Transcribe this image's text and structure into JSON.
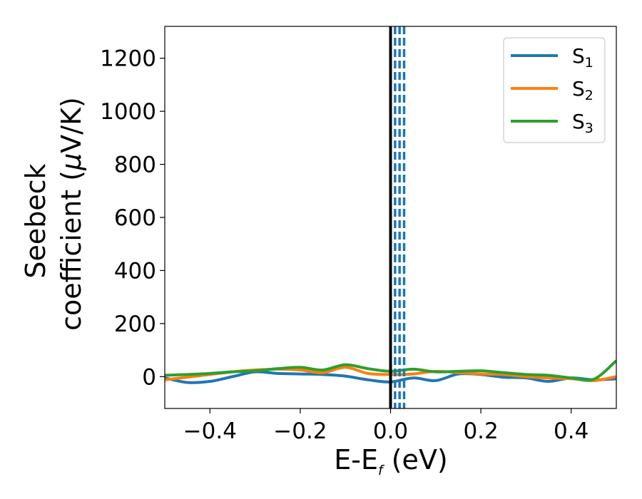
{
  "chart_data": {
    "type": "line",
    "xlabel": "E-E",
    "xlabel_subscript": "f",
    "xlabel_unit": " (eV)",
    "ylabel_line1": "Seebeck",
    "ylabel_line2_prefix": "coefficient  (",
    "ylabel_mu": "μ",
    "ylabel_line2_suffix": "V/K)",
    "xlim": [
      -0.5,
      0.5
    ],
    "ylim": [
      -120,
      1320
    ],
    "x_ticks": [
      -0.4,
      -0.2,
      0.0,
      0.2,
      0.4
    ],
    "x_tick_labels": [
      "−0.4",
      "−0.2",
      "0.0",
      "0.2",
      "0.4"
    ],
    "y_ticks": [
      0,
      200,
      400,
      600,
      800,
      1000,
      1200
    ],
    "y_tick_labels": [
      "0",
      "200",
      "400",
      "600",
      "800",
      "1000",
      "1200"
    ],
    "legend_position": "top-right",
    "vline_solid": {
      "x": 0.0,
      "color": "#000000"
    },
    "vlines_dashed": {
      "x": [
        0.01,
        0.02,
        0.03
      ],
      "color": "#1f77b4"
    },
    "x": [
      -0.5,
      -0.45,
      -0.4,
      -0.35,
      -0.3,
      -0.25,
      -0.2,
      -0.15,
      -0.1,
      -0.05,
      0.0,
      0.05,
      0.1,
      0.15,
      0.2,
      0.25,
      0.3,
      0.35,
      0.4,
      0.45,
      0.5
    ],
    "series": [
      {
        "name": "S",
        "sub": "1",
        "color": "#1f77b4",
        "values": [
          -5,
          -22,
          -18,
          0,
          18,
          12,
          10,
          8,
          2,
          -12,
          -20,
          -5,
          -15,
          10,
          8,
          -2,
          -5,
          -18,
          -5,
          -12,
          -8
        ]
      },
      {
        "name": "S",
        "sub": "2",
        "color": "#ff7f0e",
        "values": [
          -12,
          -2,
          8,
          18,
          25,
          28,
          25,
          15,
          35,
          12,
          8,
          10,
          20,
          15,
          10,
          8,
          0,
          -5,
          -8,
          -15,
          0
        ]
      },
      {
        "name": "S",
        "sub": "3",
        "color": "#2ca02c",
        "values": [
          5,
          8,
          12,
          18,
          22,
          30,
          35,
          25,
          45,
          30,
          20,
          28,
          18,
          20,
          22,
          15,
          8,
          5,
          -5,
          -10,
          60
        ]
      }
    ]
  }
}
